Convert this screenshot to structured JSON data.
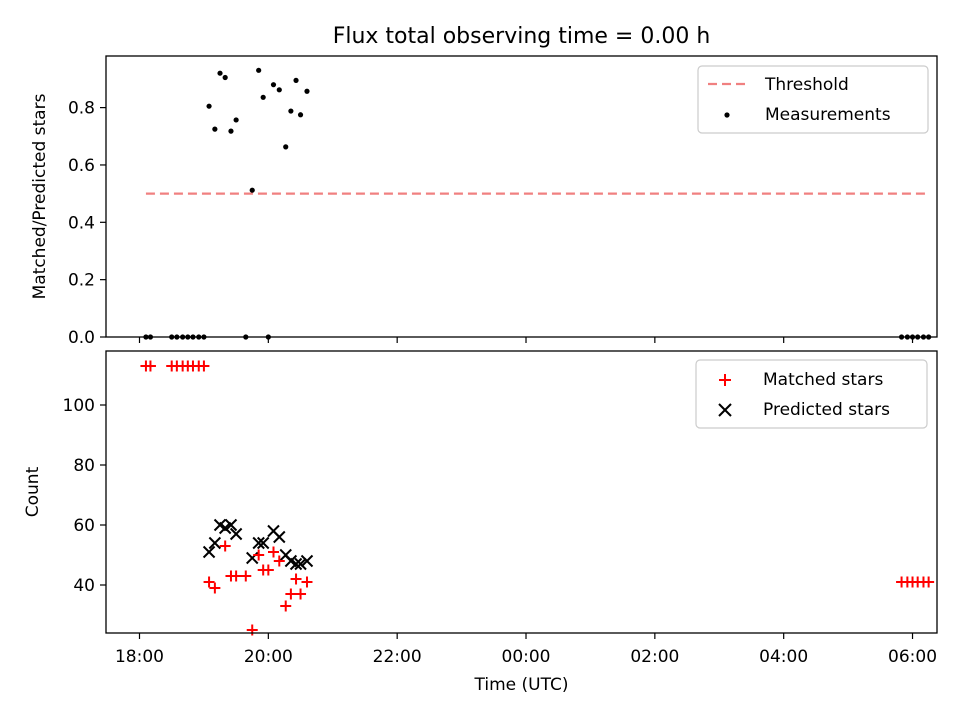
{
  "chart_data": [
    {
      "type": "scatter",
      "title": "Flux total observing time = 0.00 h",
      "xlabel": "",
      "ylabel": "Matched/Predicted stars",
      "x_unit": "hours after 18:00 UTC",
      "xlim": [
        -0.52,
        12.38
      ],
      "ylim": [
        0,
        0.98
      ],
      "yticks": [
        0.0,
        0.2,
        0.4,
        0.6,
        0.8
      ],
      "ytick_labels": [
        "0.0",
        "0.2",
        "0.4",
        "0.6",
        "0.8"
      ],
      "legend_position": "top-right",
      "threshold": {
        "name": "Threshold",
        "value": 0.5,
        "x_range": [
          0.1,
          12.25
        ],
        "color": "#f08080"
      },
      "series": [
        {
          "name": "Measurements",
          "color": "#000000",
          "points": [
            [
              0.1,
              0.0
            ],
            [
              0.17,
              0.0
            ],
            [
              0.5,
              0.0
            ],
            [
              0.58,
              0.0
            ],
            [
              0.67,
              0.0
            ],
            [
              0.75,
              0.0
            ],
            [
              0.83,
              0.0
            ],
            [
              0.92,
              0.0
            ],
            [
              1.0,
              0.0
            ],
            [
              1.08,
              0.805
            ],
            [
              1.17,
              0.725
            ],
            [
              1.25,
              0.92
            ],
            [
              1.33,
              0.905
            ],
            [
              1.42,
              0.718
            ],
            [
              1.5,
              0.757
            ],
            [
              1.65,
              0.0
            ],
            [
              1.75,
              0.512
            ],
            [
              1.85,
              0.93
            ],
            [
              1.92,
              0.836
            ],
            [
              2.0,
              0.0
            ],
            [
              2.08,
              0.88
            ],
            [
              2.17,
              0.862
            ],
            [
              2.27,
              0.663
            ],
            [
              2.35,
              0.788
            ],
            [
              2.43,
              0.895
            ],
            [
              2.5,
              0.775
            ],
            [
              2.6,
              0.857
            ],
            [
              11.83,
              0.0
            ],
            [
              11.92,
              0.0
            ],
            [
              12.0,
              0.0
            ],
            [
              12.08,
              0.0
            ],
            [
              12.17,
              0.0
            ],
            [
              12.25,
              0.0
            ]
          ]
        }
      ]
    },
    {
      "type": "scatter",
      "title": "",
      "xlabel": "Time (UTC)",
      "ylabel": "Count",
      "x_unit": "hours after 18:00 UTC",
      "xlim": [
        -0.52,
        12.38
      ],
      "ylim": [
        24,
        118
      ],
      "xticks": [
        0,
        2,
        4,
        6,
        8,
        10,
        12
      ],
      "xtick_labels": [
        "18:00",
        "20:00",
        "22:00",
        "00:00",
        "02:00",
        "04:00",
        "06:00"
      ],
      "yticks": [
        40,
        60,
        80,
        100
      ],
      "ytick_labels": [
        "40",
        "60",
        "80",
        "100"
      ],
      "legend_position": "top-right",
      "series": [
        {
          "name": "Matched stars",
          "marker": "plus",
          "color": "#ff0000",
          "points": [
            [
              0.1,
              113
            ],
            [
              0.17,
              113
            ],
            [
              0.5,
              113
            ],
            [
              0.58,
              113
            ],
            [
              0.67,
              113
            ],
            [
              0.75,
              113
            ],
            [
              0.83,
              113
            ],
            [
              0.92,
              113
            ],
            [
              1.0,
              113
            ],
            [
              1.08,
              41
            ],
            [
              1.17,
              39
            ],
            [
              1.33,
              53
            ],
            [
              1.42,
              43
            ],
            [
              1.5,
              43
            ],
            [
              1.65,
              43
            ],
            [
              1.75,
              25
            ],
            [
              1.85,
              50
            ],
            [
              1.92,
              45
            ],
            [
              2.0,
              45
            ],
            [
              2.08,
              51
            ],
            [
              2.17,
              48
            ],
            [
              2.27,
              33
            ],
            [
              2.35,
              37
            ],
            [
              2.43,
              42
            ],
            [
              2.5,
              37
            ],
            [
              2.6,
              41
            ],
            [
              11.83,
              41
            ],
            [
              11.92,
              41
            ],
            [
              12.0,
              41
            ],
            [
              12.08,
              41
            ],
            [
              12.17,
              41
            ],
            [
              12.25,
              41
            ]
          ]
        },
        {
          "name": "Predicted stars",
          "marker": "x",
          "color": "#000000",
          "points": [
            [
              1.08,
              51
            ],
            [
              1.17,
              54
            ],
            [
              1.25,
              60
            ],
            [
              1.33,
              59
            ],
            [
              1.42,
              60
            ],
            [
              1.5,
              57
            ],
            [
              1.75,
              49
            ],
            [
              1.85,
              54
            ],
            [
              1.92,
              54
            ],
            [
              2.08,
              58
            ],
            [
              2.17,
              56
            ],
            [
              2.27,
              50
            ],
            [
              2.35,
              48
            ],
            [
              2.43,
              47
            ],
            [
              2.5,
              47
            ],
            [
              2.6,
              48
            ]
          ]
        }
      ]
    }
  ]
}
